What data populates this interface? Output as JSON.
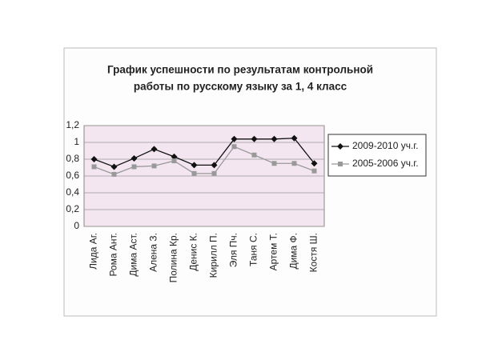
{
  "chart_data": {
    "type": "line",
    "title_lines": [
      "График успешности по результатам контрольной",
      "работы по русскому языку за 1, 4 класс"
    ],
    "categories": [
      "Лида Аг.",
      "Рома Ант.",
      "Дима Аст.",
      "Алена З.",
      "Полина Кр.",
      "Денис К.",
      "Кирилл П.",
      "Эля Пч.",
      "Таня С.",
      "Артем Т.",
      "Дима Ф.",
      "Костя Ш."
    ],
    "series": [
      {
        "name": "2009-2010 уч.г.",
        "color": "#111111",
        "marker": "diamond",
        "values": [
          0.8,
          0.71,
          0.81,
          0.92,
          0.83,
          0.73,
          0.73,
          1.04,
          1.04,
          1.04,
          1.05,
          0.75
        ]
      },
      {
        "name": "2005-2006 уч.г.",
        "color": "#999999",
        "marker": "square",
        "values": [
          0.71,
          0.62,
          0.71,
          0.72,
          0.78,
          0.63,
          0.63,
          0.95,
          0.85,
          0.75,
          0.75,
          0.66
        ]
      }
    ],
    "ylim": [
      0,
      1.2
    ],
    "yticks": [
      0,
      {
        "value": 0.2,
        "label": "0,2"
      },
      {
        "value": 0.4,
        "label": "0,4"
      },
      {
        "value": 0.6,
        "label": "0,6"
      },
      {
        "value": 0.8,
        "label": "0,8"
      },
      1,
      {
        "value": 1.2,
        "label": "1,2"
      }
    ],
    "grid": true
  }
}
